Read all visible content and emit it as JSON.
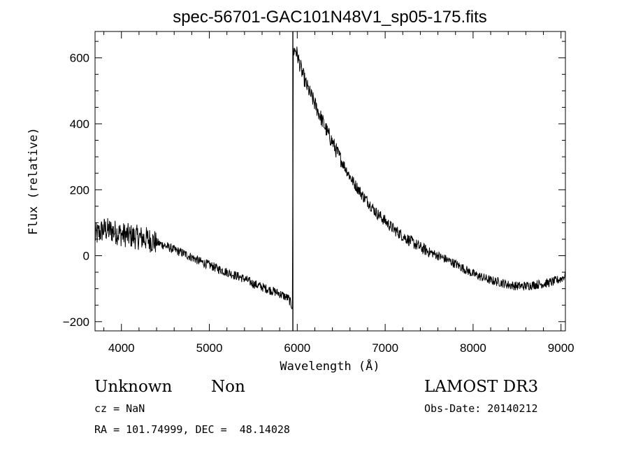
{
  "chart_data": {
    "type": "line",
    "title": "spec-56701-GAC101N48V1_sp05-175.fits",
    "xlabel": "Wavelength (Å)",
    "ylabel": "Flux (relative)",
    "xlim": [
      3700,
      9050
    ],
    "ylim": [
      -228,
      680
    ],
    "x_ticks": [
      4000,
      5000,
      6000,
      7000,
      8000,
      9000
    ],
    "y_ticks": [
      -200,
      0,
      200,
      400,
      600
    ],
    "x_tick_labels": [
      "4000",
      "5000",
      "6000",
      "7000",
      "8000",
      "9000"
    ],
    "y_tick_labels": [
      "−200",
      "0",
      "200",
      "400",
      "600"
    ],
    "vertical_line_x": 5950,
    "series": [
      {
        "name": "flux",
        "x": [
          3700,
          3800,
          3900,
          4000,
          4100,
          4200,
          4300,
          4400,
          4500,
          4600,
          4700,
          4800,
          4900,
          5000,
          5100,
          5200,
          5300,
          5400,
          5500,
          5600,
          5700,
          5800,
          5900,
          5945,
          5955,
          5980,
          6000,
          6050,
          6100,
          6150,
          6200,
          6250,
          6300,
          6350,
          6400,
          6450,
          6500,
          6550,
          6600,
          6650,
          6700,
          6750,
          6800,
          6850,
          6900,
          6950,
          7000,
          7050,
          7100,
          7200,
          7300,
          7400,
          7500,
          7600,
          7700,
          7800,
          7900,
          8000,
          8100,
          8200,
          8300,
          8400,
          8500,
          8600,
          8700,
          8800,
          8900,
          9000,
          9050
        ],
        "y": [
          60,
          80,
          75,
          65,
          60,
          55,
          50,
          40,
          30,
          18,
          8,
          -5,
          -18,
          -28,
          -40,
          -50,
          -60,
          -70,
          -85,
          -95,
          -105,
          -115,
          -130,
          -155,
          620,
          625,
          610,
          560,
          520,
          490,
          460,
          430,
          400,
          370,
          345,
          315,
          290,
          265,
          240,
          218,
          200,
          180,
          165,
          148,
          130,
          118,
          105,
          92,
          80,
          60,
          42,
          25,
          12,
          0,
          -12,
          -25,
          -40,
          -55,
          -65,
          -75,
          -80,
          -88,
          -92,
          -92,
          -88,
          -85,
          -80,
          -70,
          -60
        ]
      }
    ]
  },
  "footer": {
    "object_class": "Unknown",
    "subclass": "Non",
    "survey": "LAMOST DR3",
    "redshift": "cz = NaN",
    "obs_date": "Obs-Date: 20140212",
    "coordinates": "RA = 101.74999, DEC =  48.14028"
  }
}
